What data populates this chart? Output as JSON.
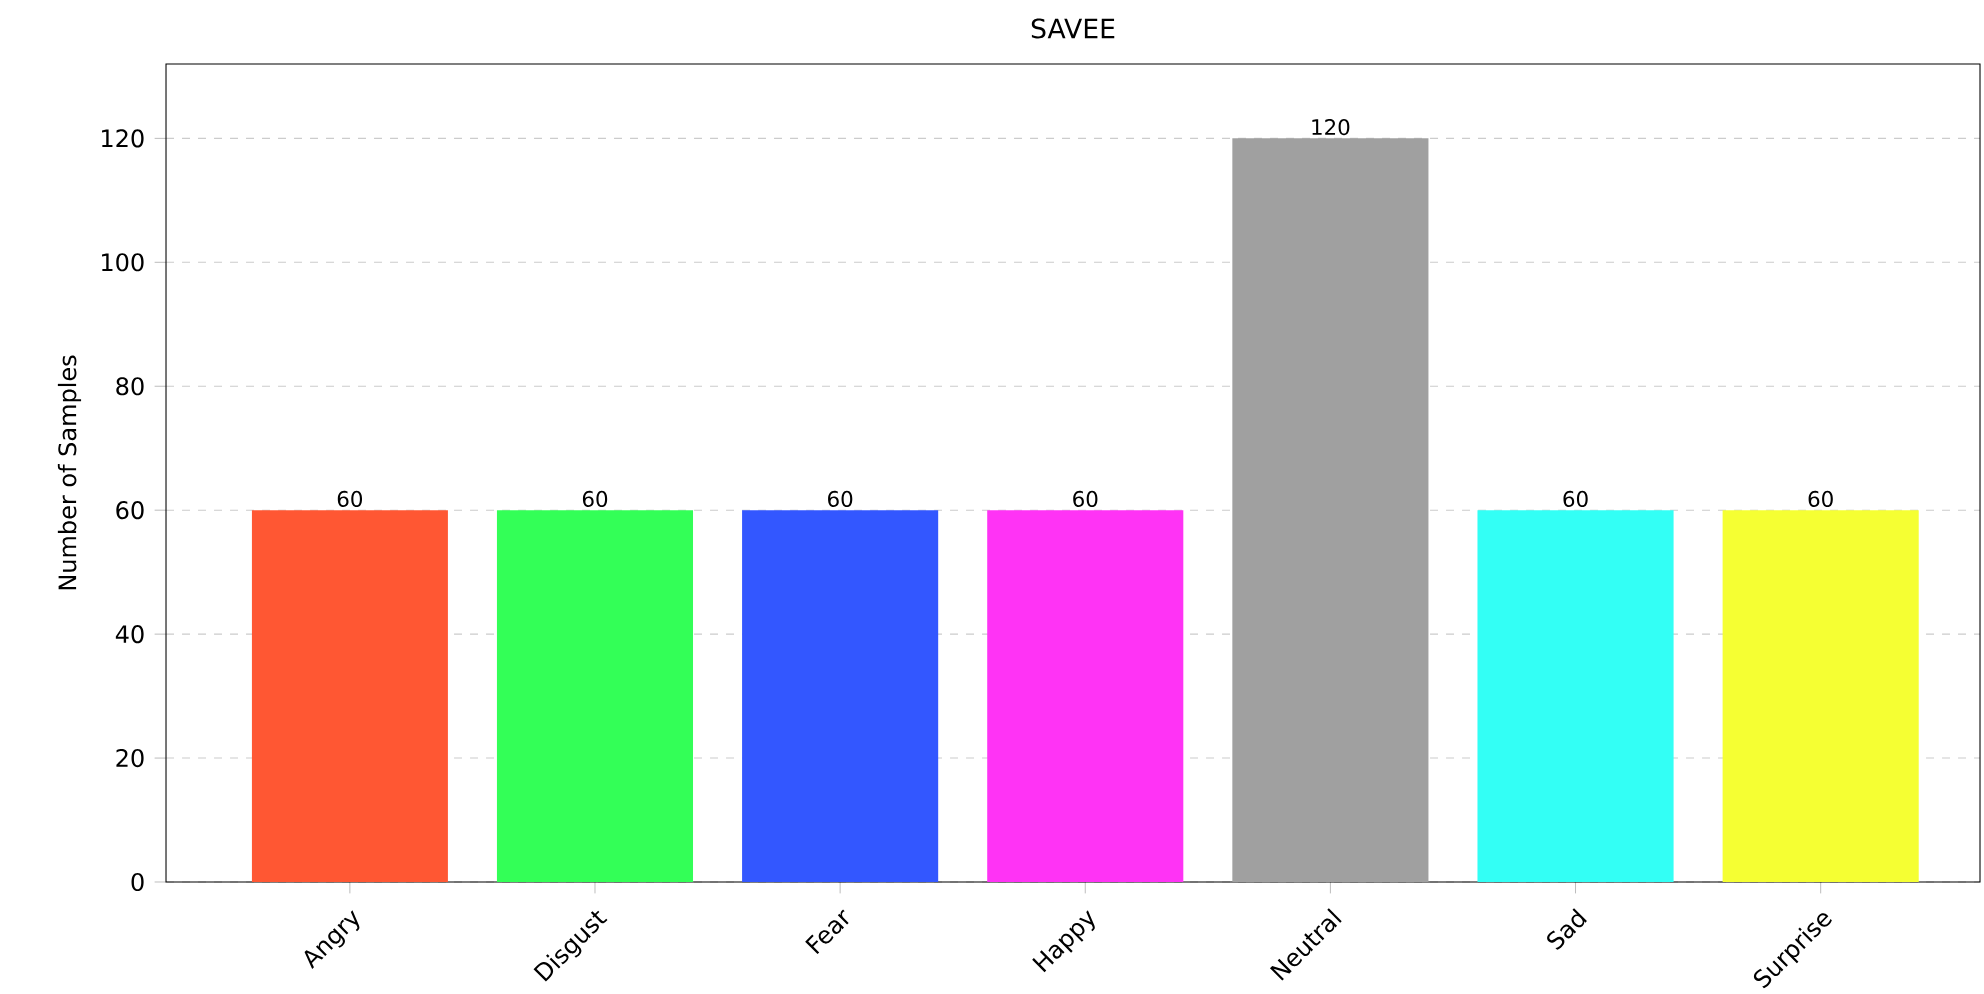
{
  "chart_data": {
    "type": "bar",
    "title": "SAVEE",
    "ylabel": "Number of Samples",
    "categories": [
      "Angry",
      "Disgust",
      "Fear",
      "Happy",
      "Neutral",
      "Sad",
      "Surprise"
    ],
    "values": [
      60,
      60,
      60,
      60,
      120,
      60,
      60
    ],
    "colors": [
      "#ff5733",
      "#33ff57",
      "#3357ff",
      "#ff33f5",
      "#a0a0a0",
      "#33fff5",
      "#f5ff33"
    ],
    "ylim": [
      0,
      132
    ],
    "yticks": [
      0,
      20,
      40,
      60,
      80,
      100,
      120
    ],
    "grid": "y",
    "data_labels": true
  }
}
